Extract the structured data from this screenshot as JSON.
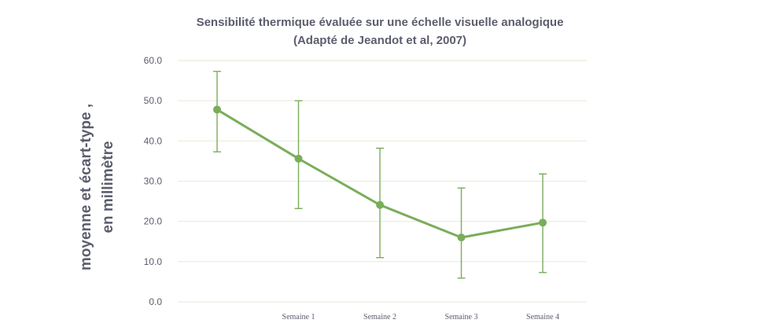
{
  "chart_data": {
    "type": "line",
    "title_line1": "Sensibilité thermique évaluée sur une échelle visuelle analogique",
    "title_line2": "(Adapté de Jeandot et al, 2007)",
    "ylabel_line1": "moyenne et écart-type ,",
    "ylabel_line2": "en millimètre",
    "xlabel": "",
    "categories": [
      "",
      "Semaine 1",
      "Semaine 2",
      "Semaine 3",
      "Semaine 4"
    ],
    "y_ticks": [
      "0.0",
      "10.0",
      "20.0",
      "30.0",
      "40.0",
      "50.0",
      "60.0"
    ],
    "ylim": [
      0,
      60
    ],
    "grid": true,
    "series": [
      {
        "values": [
          47.8,
          35.6,
          24.1,
          16.0,
          19.7
        ],
        "error_low": [
          37.3,
          23.2,
          11.0,
          5.9,
          7.3
        ],
        "error_high": [
          57.3,
          50.0,
          38.2,
          28.3,
          31.8
        ],
        "color": "#7aad5a"
      }
    ],
    "grid_color": "#e8eedc",
    "text_color": "#5b5d6e"
  }
}
